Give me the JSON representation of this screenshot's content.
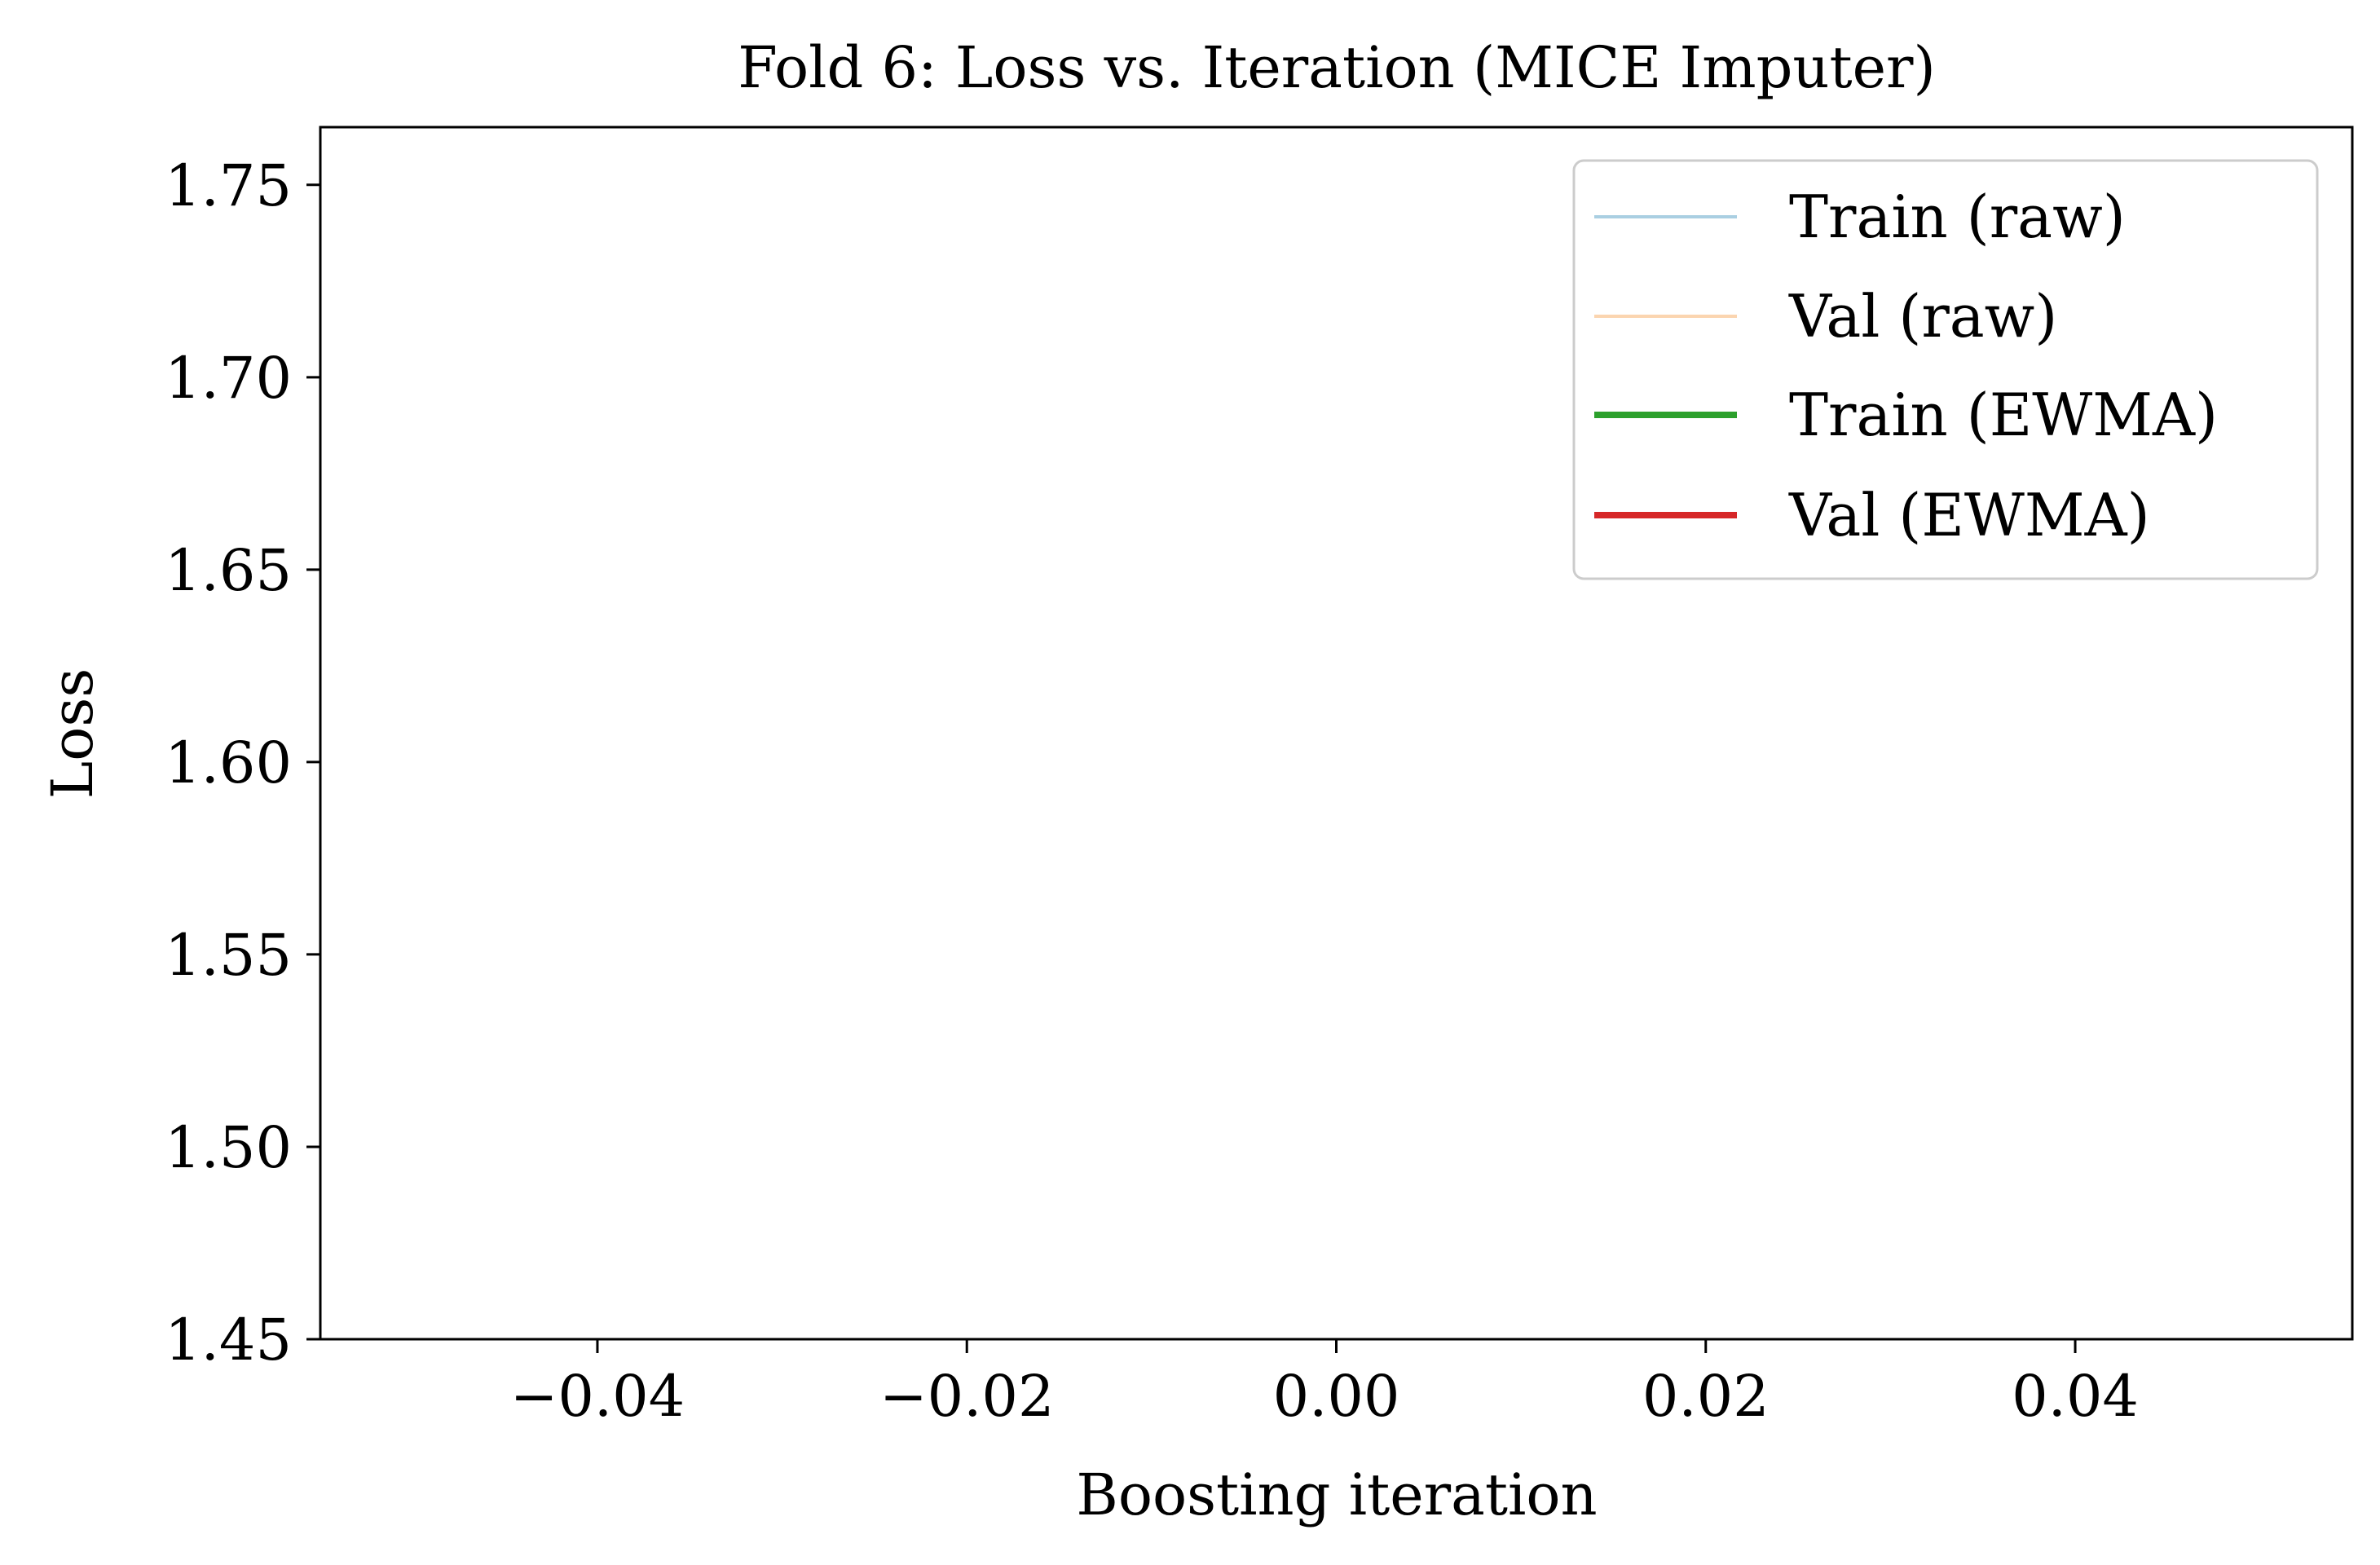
{
  "chart_data": {
    "type": "line",
    "title": "Fold 6: Loss vs. Iteration (MICE Imputer)",
    "xlabel": "Boosting iteration",
    "ylabel": "Loss",
    "xlim": [
      -0.055,
      0.055
    ],
    "ylim": [
      1.45,
      1.765
    ],
    "x_ticks": [
      -0.04,
      -0.02,
      0.0,
      0.02,
      0.04
    ],
    "x_tick_labels": [
      "−0.04",
      "−0.02",
      "0.00",
      "0.02",
      "0.04"
    ],
    "y_ticks": [
      1.45,
      1.5,
      1.55,
      1.6,
      1.65,
      1.7,
      1.75
    ],
    "y_tick_labels": [
      "1.45",
      "1.50",
      "1.55",
      "1.60",
      "1.65",
      "1.70",
      "1.75"
    ],
    "grid": false,
    "legend_position": "top-right",
    "series": [
      {
        "name": "Train (raw)",
        "color": "#aacfe2",
        "style": "thin",
        "x": [],
        "y": []
      },
      {
        "name": "Val (raw)",
        "color": "#fbd5b0",
        "style": "thin",
        "x": [],
        "y": []
      },
      {
        "name": "Train (EWMA)",
        "color": "#2ca02c",
        "style": "thick",
        "x": [],
        "y": []
      },
      {
        "name": "Val (EWMA)",
        "color": "#d62728",
        "style": "thick",
        "x": [],
        "y": []
      }
    ]
  }
}
